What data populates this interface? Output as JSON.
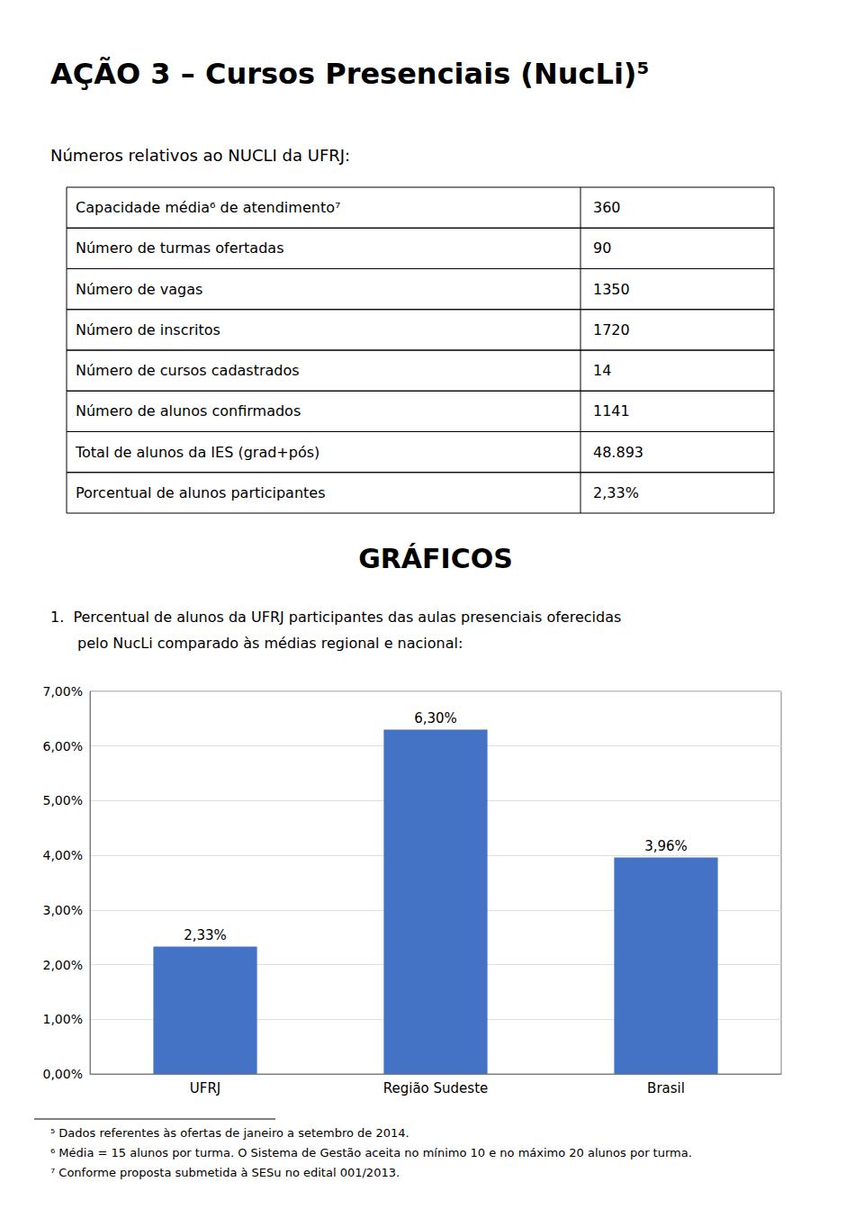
{
  "chart_data": {
    "type": "bar",
    "title": "AÇÃO 3 – Cursos Presenciais (NucLi)⁵",
    "subtitle": "Números relativos ao NUCLI da UFRJ:",
    "table": [
      [
        "Capacidade média⁶ de atendimento⁷",
        "360"
      ],
      [
        "Número de turmas ofertadas",
        "90"
      ],
      [
        "Número de vagas",
        "1350"
      ],
      [
        "Número de inscritos",
        "1720"
      ],
      [
        "Número de cursos cadastrados",
        "14"
      ],
      [
        "Número de alunos confirmados",
        "1141"
      ],
      [
        "Total de alunos da IES (grad+pós)",
        "48.893"
      ],
      [
        "Porcentual de alunos participantes",
        "2,33%"
      ]
    ],
    "section_title": "GRÁFICOS",
    "caption": [
      "1.  Percentual de alunos da UFRJ participantes das aulas presenciais oferecidas",
      "pelo NucLi comparado às médias regional e nacional:"
    ],
    "categories": [
      "UFRJ",
      "Região Sudeste",
      "Brasil"
    ],
    "values": [
      2.33,
      6.3,
      3.96
    ],
    "value_labels": [
      "2,33%",
      "6,30%",
      "3,96%"
    ],
    "data_labels": true,
    "color": "#4472C4",
    "ylim": [
      0,
      7.0
    ],
    "yticks": [
      {
        "value": 0.0,
        "label": "0,00%"
      },
      {
        "value": 1.0,
        "label": "1,00%"
      },
      {
        "value": 2.0,
        "label": "2,00%"
      },
      {
        "value": 3.0,
        "label": "3,00%"
      },
      {
        "value": 4.0,
        "label": "4,00%"
      },
      {
        "value": 5.0,
        "label": "5,00%"
      },
      {
        "value": 6.0,
        "label": "6,00%"
      },
      {
        "value": 7.0,
        "label": "7,00%"
      }
    ],
    "grid": true,
    "footnotes": [
      "⁵ Dados referentes às ofertas de janeiro a setembro de 2014.",
      "⁶ Média = 15 alunos por turma. O Sistema de Gestão aceita no mínimo 10 e no máximo 20 alunos por turma.",
      "⁷ Conforme proposta submetida à SESu no edital 001/2013."
    ]
  }
}
